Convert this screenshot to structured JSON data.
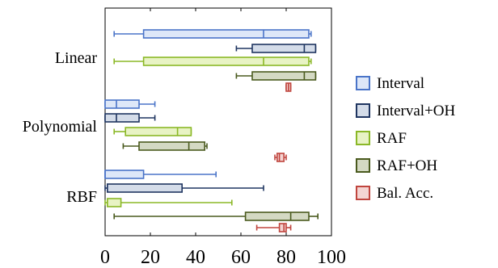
{
  "chart_data": {
    "type": "boxplot",
    "orientation": "horizontal",
    "title": "",
    "xlabel": "",
    "ylabel": "",
    "xlim": [
      0,
      100
    ],
    "x_ticks": [
      0,
      20,
      40,
      60,
      80,
      100
    ],
    "x_tick_labels": [
      "0",
      "20",
      "40",
      "60",
      "80",
      "100"
    ],
    "grid": false,
    "legend_position": "right",
    "categories": [
      "Linear",
      "Polynomial",
      "RBF"
    ],
    "series": [
      {
        "name": "Interval",
        "color": "#4a74c8",
        "fill": "#dde7f8",
        "boxes": [
          {
            "min": 4,
            "q1": 17,
            "median": 70,
            "q3": 90,
            "max": 91
          },
          {
            "min": 0,
            "q1": 0,
            "median": 5,
            "q3": 15,
            "max": 22
          },
          {
            "min": 0,
            "q1": 0,
            "median": 0,
            "q3": 17,
            "max": 49
          }
        ]
      },
      {
        "name": "Interval+OH",
        "color": "#1f3560",
        "fill": "#d4dce9",
        "boxes": [
          {
            "min": 58,
            "q1": 65,
            "median": 88,
            "q3": 93,
            "max": 93
          },
          {
            "min": 0,
            "q1": 0,
            "median": 5,
            "q3": 15,
            "max": 22
          },
          {
            "min": 0,
            "q1": 1,
            "median": 1,
            "q3": 34,
            "max": 70
          }
        ]
      },
      {
        "name": "RAF",
        "color": "#8bb827",
        "fill": "#e8f3c4",
        "boxes": [
          {
            "min": 4,
            "q1": 17,
            "median": 70,
            "q3": 90,
            "max": 91
          },
          {
            "min": 4,
            "q1": 9,
            "median": 32,
            "q3": 38,
            "max": 38
          },
          {
            "min": 0,
            "q1": 1,
            "median": 1,
            "q3": 7,
            "max": 56
          }
        ]
      },
      {
        "name": "RAF+OH",
        "color": "#4a5a1e",
        "fill": "#d4d9c3",
        "boxes": [
          {
            "min": 58,
            "q1": 65,
            "median": 88,
            "q3": 93,
            "max": 93
          },
          {
            "min": 8,
            "q1": 15,
            "median": 37,
            "q3": 44,
            "max": 45
          },
          {
            "min": 4,
            "q1": 62,
            "median": 82,
            "q3": 90,
            "max": 94
          }
        ]
      },
      {
        "name": "Bal. Acc.",
        "color": "#c0453e",
        "fill": "#f4d4d2",
        "boxes": [
          {
            "min": 80,
            "q1": 80,
            "median": 81,
            "q3": 82,
            "max": 82
          },
          {
            "min": 75,
            "q1": 76,
            "median": 77,
            "q3": 79,
            "max": 80
          },
          {
            "min": 67,
            "q1": 77,
            "median": 79,
            "q3": 80,
            "max": 82
          }
        ]
      }
    ]
  }
}
